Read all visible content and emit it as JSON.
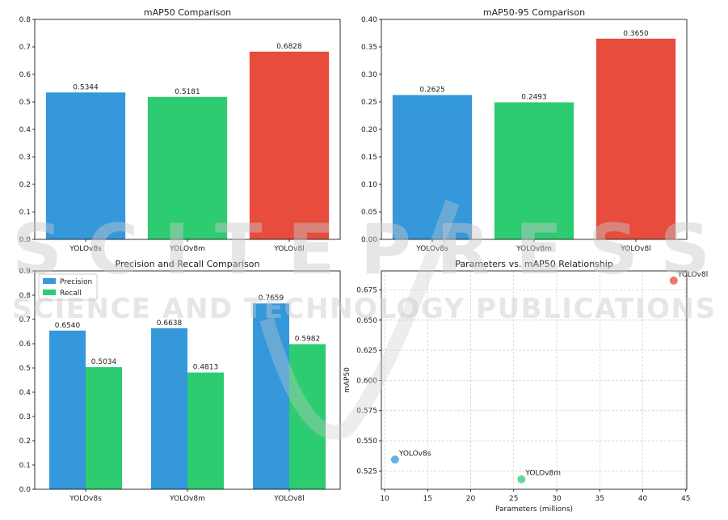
{
  "watermark": {
    "line1": "SCITEPRESS",
    "line2": "SCIENCE AND TECHNOLOGY PUBLICATIONS"
  },
  "colors": {
    "blue": "#3498db",
    "green": "#2ecc71",
    "red": "#e74c3c"
  },
  "chart_data": [
    {
      "type": "bar",
      "title": "mAP50 Comparison",
      "categories": [
        "YOLOv8s",
        "YOLOv8m",
        "YOLOv8l"
      ],
      "values": [
        0.5344,
        0.5181,
        0.6828
      ],
      "labels": [
        "0.5344",
        "0.5181",
        "0.6828"
      ],
      "ylim": [
        0,
        0.8
      ],
      "yticks": [
        "0.0",
        "0.1",
        "0.2",
        "0.3",
        "0.4",
        "0.5",
        "0.6",
        "0.7",
        "0.8"
      ],
      "xlabel": "",
      "ylabel": ""
    },
    {
      "type": "bar",
      "title": "mAP50-95 Comparison",
      "categories": [
        "YOLOv8s",
        "YOLOv8m",
        "YOLOv8l"
      ],
      "values": [
        0.2625,
        0.2493,
        0.365
      ],
      "labels": [
        "0.2625",
        "0.2493",
        "0.3650"
      ],
      "ylim": [
        0,
        0.4
      ],
      "yticks": [
        "0.00",
        "0.05",
        "0.10",
        "0.15",
        "0.20",
        "0.25",
        "0.30",
        "0.35",
        "0.40"
      ],
      "xlabel": "",
      "ylabel": ""
    },
    {
      "type": "bar",
      "title": "Precision and Recall Comparison",
      "categories": [
        "YOLOv8s",
        "YOLOv8m",
        "YOLOv8l"
      ],
      "series": [
        {
          "name": "Precision",
          "values": [
            0.654,
            0.6638,
            0.7659
          ],
          "labels": [
            "0.6540",
            "0.6638",
            "0.7659"
          ]
        },
        {
          "name": "Recall",
          "values": [
            0.5034,
            0.4813,
            0.5982
          ],
          "labels": [
            "0.5034",
            "0.4813",
            "0.5982"
          ]
        }
      ],
      "legend": "top-left",
      "ylim": [
        0,
        0.9
      ],
      "yticks": [
        "0.0",
        "0.1",
        "0.2",
        "0.3",
        "0.4",
        "0.5",
        "0.6",
        "0.7",
        "0.8",
        "0.9"
      ],
      "xlabel": "",
      "ylabel": ""
    },
    {
      "type": "scatter",
      "title": "Parameters vs. mAP50 Relationship",
      "points": [
        {
          "label": "YOLOv8s",
          "x": 11.2,
          "y": 0.5344
        },
        {
          "label": "YOLOv8m",
          "x": 25.9,
          "y": 0.5181
        },
        {
          "label": "YOLOv8l",
          "x": 43.6,
          "y": 0.6828
        }
      ],
      "xlabel": "Parameters (millions)",
      "ylabel": "mAP50",
      "xlim": [
        9.62,
        45.12
      ],
      "ylim": [
        0.5098,
        0.6908
      ],
      "xticks": [
        "10",
        "15",
        "20",
        "25",
        "30",
        "35",
        "40",
        "45"
      ],
      "yticks": [
        "0.525",
        "0.550",
        "0.575",
        "0.600",
        "0.625",
        "0.650",
        "0.675"
      ],
      "grid": true
    }
  ]
}
